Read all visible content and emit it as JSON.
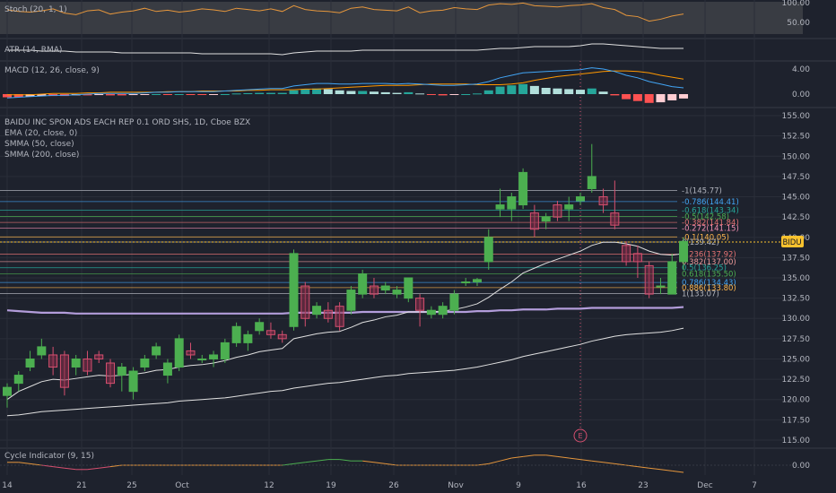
{
  "symbol_title": "BAIDU INC SPON ADS EACH REP 0.1 ORD SHS, 1D, Cboe BZX",
  "overlay_labels": [
    "EMA (20, close, 0)",
    "SMMA (50, close)",
    "SMMA (200, close)"
  ],
  "price_tag": "BIDU",
  "event_marker": "E",
  "colors": {
    "up": "#4caf50",
    "down": "#d64f6f",
    "ema": "#e0e0e0",
    "smma200": "#b39ddb",
    "stoch": "#e5963c",
    "macd": "#42a5f5",
    "signal": "#ff9800"
  },
  "panes": {
    "stoch": {
      "label": "Stoch (20, 1, 1)",
      "ticks": [
        "100.00",
        "50.00"
      ]
    },
    "atr": {
      "label": "ATR (14, RMA)"
    },
    "macd": {
      "label": "MACD (12, 26, close, 9)",
      "ticks": [
        "4.00",
        "0.00"
      ]
    },
    "cycle": {
      "label": "Cycle Indicator (9, 15)",
      "ticks": [
        "0.00"
      ]
    }
  },
  "chart_data": {
    "type": "candlestick",
    "title": "BAIDU INC SPON ADS EACH REP 0.1 ORD SHS, 1D, Cboe BZX",
    "x_tick_labels": [
      "14",
      "21",
      "25",
      "Oct",
      "12",
      "19",
      "26",
      "Nov",
      "9",
      "16",
      "23",
      "Dec",
      "7"
    ],
    "y_tick_labels": [
      "155.00",
      "152.50",
      "150.00",
      "147.50",
      "145.00",
      "142.50",
      "140.00",
      "137.50",
      "135.00",
      "132.50",
      "130.00",
      "127.50",
      "125.00",
      "122.50",
      "120.00",
      "117.50",
      "115.00"
    ],
    "ylim": [
      114,
      156
    ],
    "candles": [
      {
        "o": 120.5,
        "h": 122.0,
        "l": 119.0,
        "c": 121.5
      },
      {
        "o": 122.0,
        "h": 123.5,
        "l": 121.0,
        "c": 123.0
      },
      {
        "o": 124.0,
        "h": 126.0,
        "l": 123.5,
        "c": 125.0
      },
      {
        "o": 125.5,
        "h": 127.5,
        "l": 125.0,
        "c": 126.5
      },
      {
        "o": 125.5,
        "h": 126.5,
        "l": 123.0,
        "c": 124.0
      },
      {
        "o": 125.5,
        "h": 126.0,
        "l": 120.5,
        "c": 121.5
      },
      {
        "o": 124.0,
        "h": 125.5,
        "l": 123.0,
        "c": 125.0
      },
      {
        "o": 125.0,
        "h": 126.0,
        "l": 123.0,
        "c": 123.5
      },
      {
        "o": 125.5,
        "h": 126.0,
        "l": 124.5,
        "c": 125.0
      },
      {
        "o": 124.5,
        "h": 125.0,
        "l": 121.5,
        "c": 122.0
      },
      {
        "o": 123.0,
        "h": 124.5,
        "l": 121.0,
        "c": 124.0
      },
      {
        "o": 121.0,
        "h": 124.0,
        "l": 120.0,
        "c": 123.5
      },
      {
        "o": 124.0,
        "h": 125.5,
        "l": 123.5,
        "c": 125.0
      },
      {
        "o": 125.5,
        "h": 127.0,
        "l": 125.0,
        "c": 126.5
      },
      {
        "o": 123.0,
        "h": 125.0,
        "l": 122.0,
        "c": 124.5
      },
      {
        "o": 124.0,
        "h": 128.0,
        "l": 123.5,
        "c": 127.5
      },
      {
        "o": 126.0,
        "h": 127.0,
        "l": 125.0,
        "c": 125.5
      },
      {
        "o": 125.0,
        "h": 125.5,
        "l": 124.5,
        "c": 125.0
      },
      {
        "o": 125.0,
        "h": 126.0,
        "l": 124.0,
        "c": 125.5
      },
      {
        "o": 125.0,
        "h": 127.5,
        "l": 124.5,
        "c": 127.0
      },
      {
        "o": 127.0,
        "h": 129.5,
        "l": 126.5,
        "c": 129.0
      },
      {
        "o": 127.0,
        "h": 128.5,
        "l": 126.0,
        "c": 128.0
      },
      {
        "o": 128.5,
        "h": 130.0,
        "l": 128.0,
        "c": 129.5
      },
      {
        "o": 128.5,
        "h": 129.5,
        "l": 127.5,
        "c": 128.0
      },
      {
        "o": 128.0,
        "h": 128.5,
        "l": 127.0,
        "c": 127.5
      },
      {
        "o": 129.0,
        "h": 138.5,
        "l": 128.5,
        "c": 138.0
      },
      {
        "o": 134.0,
        "h": 134.5,
        "l": 129.0,
        "c": 130.0
      },
      {
        "o": 130.5,
        "h": 132.0,
        "l": 130.0,
        "c": 131.5
      },
      {
        "o": 131.0,
        "h": 132.0,
        "l": 129.5,
        "c": 130.0
      },
      {
        "o": 131.5,
        "h": 132.0,
        "l": 128.5,
        "c": 129.0
      },
      {
        "o": 131.0,
        "h": 134.0,
        "l": 130.5,
        "c": 133.5
      },
      {
        "o": 133.0,
        "h": 136.0,
        "l": 132.5,
        "c": 135.5
      },
      {
        "o": 134.0,
        "h": 135.0,
        "l": 132.5,
        "c": 133.0
      },
      {
        "o": 133.5,
        "h": 134.5,
        "l": 133.0,
        "c": 134.0
      },
      {
        "o": 133.0,
        "h": 134.0,
        "l": 132.5,
        "c": 133.5
      },
      {
        "o": 132.5,
        "h": 135.0,
        "l": 132.0,
        "c": 135.0
      },
      {
        "o": 132.5,
        "h": 133.0,
        "l": 129.0,
        "c": 131.0
      },
      {
        "o": 130.5,
        "h": 131.5,
        "l": 130.0,
        "c": 131.0
      },
      {
        "o": 130.5,
        "h": 132.0,
        "l": 130.0,
        "c": 131.5
      },
      {
        "o": 131.0,
        "h": 133.5,
        "l": 130.5,
        "c": 133.0
      },
      {
        "o": 134.5,
        "h": 135.0,
        "l": 134.0,
        "c": 134.5
      },
      {
        "o": 134.5,
        "h": 135.0,
        "l": 134.0,
        "c": 134.8
      },
      {
        "o": 137.0,
        "h": 141.0,
        "l": 136.0,
        "c": 140.0
      },
      {
        "o": 143.5,
        "h": 146.0,
        "l": 142.5,
        "c": 144.0
      },
      {
        "o": 143.5,
        "h": 145.5,
        "l": 142.0,
        "c": 145.0
      },
      {
        "o": 144.0,
        "h": 148.5,
        "l": 143.5,
        "c": 148.0
      },
      {
        "o": 143.0,
        "h": 144.0,
        "l": 140.0,
        "c": 141.0
      },
      {
        "o": 142.0,
        "h": 143.0,
        "l": 141.0,
        "c": 142.5
      },
      {
        "o": 144.0,
        "h": 144.5,
        "l": 142.0,
        "c": 142.5
      },
      {
        "o": 143.5,
        "h": 145.0,
        "l": 142.0,
        "c": 144.0
      },
      {
        "o": 144.5,
        "h": 145.5,
        "l": 144.0,
        "c": 145.0
      },
      {
        "o": 146.0,
        "h": 151.5,
        "l": 145.5,
        "c": 147.5
      },
      {
        "o": 145.0,
        "h": 146.0,
        "l": 143.0,
        "c": 144.0
      },
      {
        "o": 143.0,
        "h": 147.0,
        "l": 141.0,
        "c": 141.5
      },
      {
        "o": 139.0,
        "h": 139.5,
        "l": 136.5,
        "c": 137.0
      },
      {
        "o": 138.0,
        "h": 139.0,
        "l": 135.0,
        "c": 137.0
      },
      {
        "o": 136.5,
        "h": 137.0,
        "l": 132.5,
        "c": 133.0
      },
      {
        "o": 134.0,
        "h": 135.0,
        "l": 133.0,
        "c": 134.0
      },
      {
        "o": 133.0,
        "h": 138.0,
        "l": 133.0,
        "c": 137.0
      },
      {
        "o": 137.0,
        "h": 140.0,
        "l": 136.0,
        "c": 139.5
      }
    ],
    "ema20": [
      120,
      121,
      121.6,
      122.2,
      122.5,
      122.4,
      122.6,
      122.8,
      123,
      122.9,
      123,
      123.1,
      123.3,
      123.6,
      123.7,
      124,
      124.2,
      124.3,
      124.5,
      124.8,
      125.2,
      125.5,
      125.9,
      126.1,
      126.3,
      127.5,
      127.8,
      128.1,
      128.3,
      128.4,
      128.9,
      129.5,
      129.8,
      130.2,
      130.4,
      130.8,
      130.8,
      130.8,
      130.9,
      131.1,
      131.4,
      131.8,
      132.6,
      133.6,
      134.5,
      135.6,
      136.2,
      136.8,
      137.3,
      137.8,
      138.3,
      139,
      139.4,
      139.4,
      139.2,
      138.9,
      138.3,
      137.9,
      137.8,
      138
    ],
    "smma50": [
      118,
      118.1,
      118.3,
      118.5,
      118.6,
      118.7,
      118.8,
      118.9,
      119,
      119.1,
      119.2,
      119.3,
      119.4,
      119.5,
      119.6,
      119.8,
      119.9,
      120,
      120.1,
      120.2,
      120.4,
      120.6,
      120.8,
      121,
      121.1,
      121.4,
      121.6,
      121.8,
      122,
      122.1,
      122.3,
      122.5,
      122.7,
      122.9,
      123,
      123.2,
      123.3,
      123.4,
      123.5,
      123.6,
      123.8,
      124,
      124.3,
      124.6,
      124.9,
      125.3,
      125.6,
      125.9,
      126.2,
      126.5,
      126.8,
      127.2,
      127.5,
      127.8,
      128,
      128.1,
      128.2,
      128.3,
      128.5,
      128.8
    ],
    "smma200": [
      131,
      130.9,
      130.8,
      130.7,
      130.7,
      130.7,
      130.6,
      130.6,
      130.6,
      130.6,
      130.6,
      130.6,
      130.6,
      130.6,
      130.6,
      130.6,
      130.6,
      130.6,
      130.6,
      130.6,
      130.6,
      130.6,
      130.6,
      130.6,
      130.6,
      130.7,
      130.7,
      130.7,
      130.7,
      130.7,
      130.7,
      130.8,
      130.8,
      130.8,
      130.8,
      130.8,
      130.8,
      130.8,
      130.8,
      130.8,
      130.8,
      130.9,
      130.9,
      131,
      131,
      131.1,
      131.1,
      131.1,
      131.2,
      131.2,
      131.2,
      131.3,
      131.3,
      131.3,
      131.3,
      131.3,
      131.3,
      131.3,
      131.3,
      131.4
    ],
    "fib_levels": [
      {
        "label": "-1(145.77)",
        "value": 145.77,
        "color": "#b2b5be"
      },
      {
        "label": "-0.786(144.41)",
        "value": 144.41,
        "color": "#42a5f5"
      },
      {
        "label": "-0.618(143.34)",
        "value": 143.34,
        "color": "#26a69a"
      },
      {
        "label": "-0.5(142.58)",
        "value": 142.58,
        "color": "#4caf50"
      },
      {
        "label": "-0.382(141.84)",
        "value": 141.84,
        "color": "#e57373"
      },
      {
        "label": "-0.272(141.15)",
        "value": 141.15,
        "color": "#f48fb1"
      },
      {
        "label": "-0.1(140.05)",
        "value": 140.05,
        "color": "#ffb74d"
      },
      {
        "label": "0(139.42)",
        "value": 139.42,
        "color": "#b2b5be"
      },
      {
        "label": "0.236(137.92)",
        "value": 137.92,
        "color": "#e57373"
      },
      {
        "label": "0.382(137.00)",
        "value": 137.0,
        "color": "#ef9a9a"
      },
      {
        "label": "0.5(136.25)",
        "value": 136.25,
        "color": "#26a69a"
      },
      {
        "label": "0.618(135.50)",
        "value": 135.5,
        "color": "#4caf50"
      },
      {
        "label": "0.786(134.43)",
        "value": 134.43,
        "color": "#42a5f5"
      },
      {
        "label": "0.886(133.80)",
        "value": 133.8,
        "color": "#ffb74d"
      },
      {
        "label": "1(133.07)",
        "value": 133.07,
        "color": "#b2b5be"
      }
    ],
    "stoch": [
      75,
      70,
      68,
      72,
      78,
      65,
      60,
      72,
      75,
      62,
      68,
      72,
      80,
      70,
      74,
      68,
      72,
      78,
      75,
      70,
      80,
      76,
      72,
      78,
      70,
      88,
      76,
      72,
      70,
      66,
      80,
      84,
      76,
      74,
      72,
      84,
      66,
      72,
      74,
      82,
      78,
      76,
      90,
      94,
      92,
      96,
      88,
      86,
      84,
      88,
      90,
      94,
      82,
      76,
      58,
      54,
      40,
      46,
      56,
      62
    ],
    "atr": [
      3.0,
      3.0,
      3.0,
      2.95,
      2.95,
      2.95,
      2.9,
      2.9,
      2.9,
      2.9,
      2.85,
      2.85,
      2.85,
      2.85,
      2.85,
      2.85,
      2.85,
      2.8,
      2.8,
      2.8,
      2.8,
      2.8,
      2.8,
      2.8,
      2.75,
      2.85,
      2.9,
      2.95,
      2.95,
      2.95,
      2.95,
      3.0,
      3.0,
      3.0,
      3.0,
      3.0,
      3.0,
      3.0,
      3.0,
      3.0,
      3.0,
      3.0,
      3.05,
      3.1,
      3.1,
      3.15,
      3.2,
      3.2,
      3.2,
      3.2,
      3.25,
      3.35,
      3.35,
      3.3,
      3.25,
      3.2,
      3.15,
      3.1,
      3.1,
      3.1
    ],
    "macd_hist": [
      -0.5,
      -0.5,
      -0.4,
      -0.3,
      -0.3,
      -0.3,
      -0.2,
      -0.2,
      -0.15,
      -0.2,
      -0.2,
      -0.15,
      -0.1,
      0,
      -0.05,
      0,
      -0.05,
      -0.1,
      -0.05,
      0,
      0.1,
      0.15,
      0.2,
      0.2,
      0.2,
      0.6,
      0.8,
      0.9,
      0.8,
      0.6,
      0.5,
      0.5,
      0.4,
      0.3,
      0.2,
      0.3,
      0.1,
      -0.1,
      -0.2,
      -0.1,
      0,
      0.1,
      0.6,
      1.2,
      1.4,
      1.6,
      1.3,
      1.0,
      0.9,
      0.8,
      0.7,
      0.9,
      0.4,
      -0.2,
      -0.8,
      -1.1,
      -1.4,
      -1.3,
      -1.0,
      -0.7
    ],
    "macd": [
      -0.6,
      -0.5,
      -0.4,
      -0.3,
      -0.2,
      -0.2,
      -0.1,
      0,
      0.1,
      0.1,
      0.1,
      0.1,
      0.2,
      0.3,
      0.3,
      0.4,
      0.4,
      0.4,
      0.4,
      0.5,
      0.6,
      0.7,
      0.8,
      0.9,
      0.9,
      1.3,
      1.5,
      1.7,
      1.7,
      1.6,
      1.6,
      1.7,
      1.7,
      1.7,
      1.6,
      1.7,
      1.6,
      1.5,
      1.4,
      1.4,
      1.5,
      1.6,
      2.0,
      2.6,
      3.0,
      3.4,
      3.5,
      3.6,
      3.7,
      3.8,
      3.9,
      4.2,
      4.0,
      3.6,
      3.0,
      2.6,
      2.0,
      1.6,
      1.2,
      1.0
    ],
    "signal": [
      -0.1,
      -0.1,
      -0.1,
      0,
      0.1,
      0.1,
      0.1,
      0.2,
      0.2,
      0.3,
      0.3,
      0.3,
      0.3,
      0.3,
      0.4,
      0.4,
      0.4,
      0.5,
      0.5,
      0.5,
      0.5,
      0.6,
      0.6,
      0.7,
      0.7,
      0.7,
      0.8,
      0.8,
      0.9,
      1.0,
      1.1,
      1.2,
      1.3,
      1.4,
      1.4,
      1.4,
      1.5,
      1.6,
      1.6,
      1.6,
      1.6,
      1.5,
      1.5,
      1.5,
      1.6,
      1.8,
      2.2,
      2.5,
      2.8,
      3.0,
      3.2,
      3.4,
      3.6,
      3.7,
      3.7,
      3.6,
      3.4,
      3.0,
      2.7,
      2.4
    ],
    "cycle": [
      2,
      2,
      1,
      0,
      -1,
      -2,
      -3,
      -3,
      -2,
      -1,
      0,
      0,
      0,
      0,
      0,
      0,
      0,
      0,
      0,
      0,
      0,
      0,
      0,
      0,
      0,
      1,
      2,
      3,
      4,
      4,
      3,
      3,
      2,
      1,
      0,
      0,
      0,
      0,
      0,
      0,
      0,
      0,
      1,
      3,
      5,
      6,
      7,
      7,
      6,
      5,
      4,
      3,
      2,
      1,
      0,
      -1,
      -2,
      -3,
      -4,
      -5
    ]
  }
}
